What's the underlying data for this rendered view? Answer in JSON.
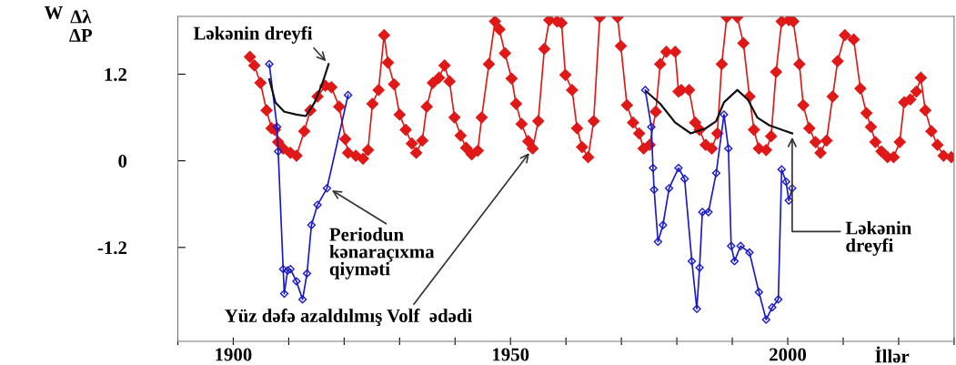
{
  "chart_data": {
    "type": "line",
    "ylabel": "W",
    "xlabel": "İllər",
    "xlim": [
      1890,
      2030
    ],
    "xticks": [
      {
        "value": 1890,
        "label": null
      },
      1900,
      {
        "value": 1910,
        "label": null
      },
      {
        "value": 1920,
        "label": null
      },
      {
        "value": 1930,
        "label": null
      },
      {
        "value": 1940,
        "label": null
      },
      1950,
      {
        "value": 1960,
        "label": null
      },
      {
        "value": 1970,
        "label": null
      },
      {
        "value": 1980,
        "label": null
      },
      {
        "value": 1990,
        "label": null
      },
      2000,
      {
        "value": 2010,
        "label": null
      },
      {
        "value": 2020,
        "label": null
      },
      {
        "value": 2030,
        "label": null
      }
    ],
    "ylim": [
      -2.5,
      2.0
    ],
    "yticks": [
      -1.2,
      0,
      1.2
    ],
    "grid": false,
    "legend": false,
    "annotations": [
      "Δλ\nΔP",
      {
        "text": "Ləkənin dreyfi",
        "x": 1917.2,
        "y": 1.34
      },
      {
        "text": "Periodun\nkənaraçıxma\nqiyməti",
        "x": 1917.2,
        "y": -0.38
      },
      {
        "text": "Yüz dəfə azaldılmış Volf  ədədi",
        "x": 1953.8,
        "y": 0.15
      },
      {
        "text": "Ləkənin\ndreyfi",
        "x": 2000.8,
        "y": 0.38
      }
    ],
    "series": [
      {
        "color": "#e01818",
        "marker": "diamond",
        "x": [
          1903.0,
          1903.8,
          1904.9,
          1906.0,
          1906.9,
          1907.5,
          1908.1,
          1909.0,
          1910.3,
          1911.4,
          1912.8,
          1913.9,
          1915.2,
          1916.6,
          1917.7,
          1919.1,
          1920.2,
          1920.7,
          1922.1,
          1923.4,
          1924.3,
          1925.1,
          1926.2,
          1927.2,
          1927.9,
          1929.0,
          1930.0,
          1931.1,
          1932.2,
          1933.0,
          1934.1,
          1934.9,
          1936.0,
          1937.1,
          1938.1,
          1939.0,
          1939.9,
          1941.0,
          1942.0,
          1943.0,
          1944.1,
          1944.8,
          1946.1,
          1947.2,
          1948.0,
          1949.0,
          1950.2,
          1951.0,
          1952.0,
          1953.2,
          1954.0,
          1955.0,
          1956.1,
          1957.0,
          1958.4,
          1959.2,
          1959.9,
          1961.1,
          1962.0,
          1962.9,
          1964.0,
          1965.0,
          1966.1,
          1967.7,
          1969.3,
          1969.9,
          1971.0,
          1972.1,
          1973.2,
          1974.0,
          1975.1,
          1976.2,
          1977.0,
          1978.1,
          1979.7,
          1980.3,
          1980.8,
          1982.2,
          1983.3,
          1984.1,
          1985.2,
          1986.3,
          1987.3,
          1988.1,
          1989.0,
          1990.9,
          1992.0,
          1993.1,
          1993.9,
          1994.8,
          1996.1,
          1997.0,
          1997.9,
          1998.9,
          2000.2,
          2001.0,
          2002.1,
          2002.8,
          2003.9,
          2005.0,
          2005.9,
          2007.0,
          2008.1,
          2009.0,
          2010.3,
          2011.9,
          2013.1,
          2014.2,
          2015.0,
          2015.8,
          2016.9,
          2018.0,
          2019.1,
          2020.2,
          2021.0,
          2022.1,
          2023.2,
          2024.0,
          2024.8,
          2025.9,
          2027.0,
          2028.1,
          2029.5
        ],
        "values": [
          1.44,
          1.32,
          1.08,
          0.7,
          0.45,
          0.43,
          0.26,
          0.17,
          0.11,
          0.07,
          0.41,
          0.7,
          0.89,
          1.04,
          1.02,
          0.75,
          0.3,
          0.11,
          0.07,
          0.03,
          0.15,
          0.79,
          0.98,
          1.74,
          1.36,
          1.06,
          0.64,
          0.43,
          0.24,
          0.11,
          0.28,
          0.75,
          1.08,
          1.15,
          1.32,
          1.1,
          0.6,
          0.35,
          0.18,
          0.09,
          0.14,
          0.6,
          1.34,
          1.93,
          1.82,
          1.49,
          1.14,
          0.79,
          0.51,
          0.27,
          0.17,
          0.55,
          1.55,
          1.95,
          1.93,
          1.91,
          1.19,
          0.98,
          0.45,
          0.19,
          0.05,
          0.55,
          1.99,
          null,
          1.99,
          1.59,
          0.77,
          0.53,
          0.38,
          0.17,
          0.22,
          0.68,
          1.34,
          1.51,
          1.51,
          0.96,
          0.98,
          0.98,
          0.53,
          0.43,
          0.22,
          0.17,
          0.38,
          1.34,
          1.99,
          1.99,
          1.63,
          0.89,
          0.43,
          0.17,
          0.15,
          0.34,
          1.23,
          1.93,
          1.95,
          1.93,
          1.34,
          0.77,
          0.45,
          0.26,
          0.11,
          0.28,
          0.89,
          1.38,
          1.74,
          1.68,
          1.0,
          0.66,
          0.47,
          0.26,
          0.13,
          0.05,
          0.05,
          0.26,
          0.81,
          0.85,
          0.96,
          1.15,
          0.7,
          0.41,
          0.22,
          0.07,
          0.05
        ]
      },
      {
        "color": "#1a1acc",
        "marker": "diamond",
        "x": [
          1906.5,
          1907.9,
          1908.1,
          1909.0,
          1909.2,
          1909.8,
          1910.3,
          1911.4,
          1912.5,
          1913.3,
          1914.1,
          1915.2,
          1916.9,
          1920.7,
          1945.0,
          1974.3,
          1975.4,
          1975.7,
          1975.9,
          1976.6,
          1977.5,
          1978.6,
          1980.3,
          1981.4,
          1982.7,
          1983.6,
          1984.1,
          1984.6,
          1985.7,
          1987.1,
          1988.5,
          1989.3,
          1989.8,
          1990.4,
          1991.5,
          1993.1,
          1994.8,
          1996.1,
          1997.2,
          1998.3,
          1998.9,
          1999.7,
          2000.2,
          2000.8
        ],
        "values": [
          1.34,
          0.47,
          0.13,
          -1.5,
          -1.84,
          -1.52,
          -1.5,
          -1.67,
          -1.92,
          -1.56,
          -0.89,
          -0.61,
          -0.38,
          0.91,
          null,
          0.98,
          0.47,
          -0.1,
          -0.4,
          -1.12,
          -0.89,
          -0.38,
          -0.1,
          -0.25,
          -1.39,
          -2.05,
          -1.48,
          -0.71,
          -0.71,
          -0.17,
          0.64,
          0.17,
          -1.18,
          -1.39,
          -1.18,
          -1.27,
          -1.82,
          -2.2,
          -2.03,
          -1.92,
          -0.12,
          -0.29,
          -0.55,
          -0.38
        ]
      },
      {
        "color": "#111111",
        "marker": "none",
        "x": [
          1906.5,
          1907.6,
          1909.2,
          1911.4,
          1913.1,
          1914.7,
          1916.1,
          1917.2,
          1945.0,
          1974.5,
          1977.0,
          1979.7,
          1982.5,
          1985.2,
          1987.1,
          1988.5,
          1990.9,
          1992.8,
          1994.5,
          1996.7,
          1998.9,
          2000.8
        ],
        "values": [
          1.13,
          0.81,
          0.68,
          0.64,
          0.62,
          0.81,
          1.08,
          1.34,
          null,
          0.96,
          0.79,
          0.53,
          0.38,
          0.45,
          0.55,
          0.81,
          0.98,
          0.85,
          0.6,
          0.49,
          0.43,
          0.38
        ]
      }
    ]
  }
}
